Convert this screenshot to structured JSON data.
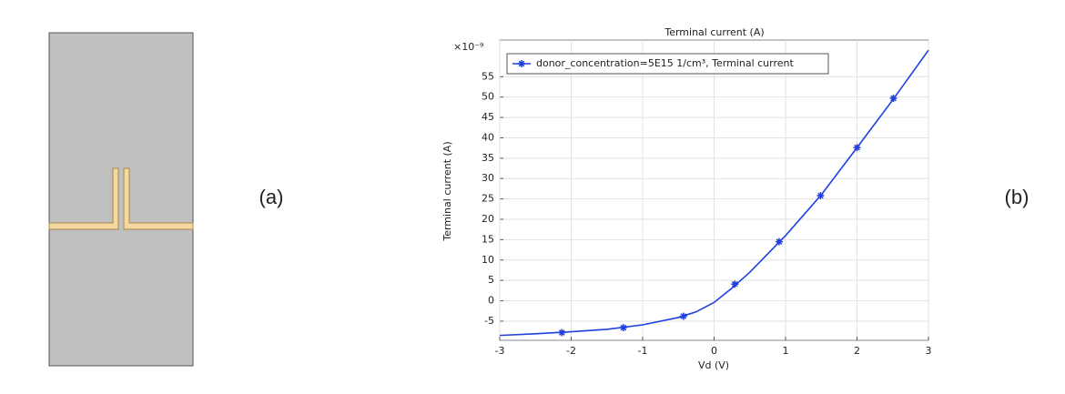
{
  "panel_labels": {
    "a": "(a)",
    "b": "(b)"
  },
  "chart_data": {
    "type": "line",
    "title": "Terminal current (A)",
    "x_label": "Vd (V)",
    "y_label": "Terminal current (A)",
    "y_multiplier": "×10⁻⁹",
    "xlim": [
      -3,
      3
    ],
    "ylim": [
      -9.7,
      64
    ],
    "xticks": [
      -3,
      -2,
      -1,
      0,
      1,
      2,
      3
    ],
    "yticks": [
      -5,
      0,
      5,
      10,
      15,
      20,
      25,
      30,
      35,
      40,
      45,
      50,
      55
    ],
    "grid": true,
    "legend": "top-left",
    "series": [
      {
        "name": "donor_concentration=5E15 1/cm³, Terminal current",
        "color": "#1f3fe0",
        "x": [
          -3,
          -2.5,
          -2,
          -1.5,
          -1,
          -0.5,
          -0.25,
          0,
          0.25,
          0.5,
          1,
          1.5,
          2,
          2.5,
          3
        ],
        "values": [
          -8.5,
          -8.1,
          -7.6,
          -7.0,
          -5.9,
          -4.1,
          -2.7,
          -0.4,
          3.1,
          7,
          16,
          26,
          37.6,
          49.3,
          61.5
        ],
        "markers": {
          "x": [
            -2.13,
            -1.27,
            -0.43,
            0.29,
            0.91,
            1.49,
            2.0,
            2.51
          ],
          "values": [
            -7.8,
            -6.6,
            -3.8,
            4.1,
            14.5,
            25.8,
            37.6,
            49.7
          ]
        }
      }
    ]
  }
}
